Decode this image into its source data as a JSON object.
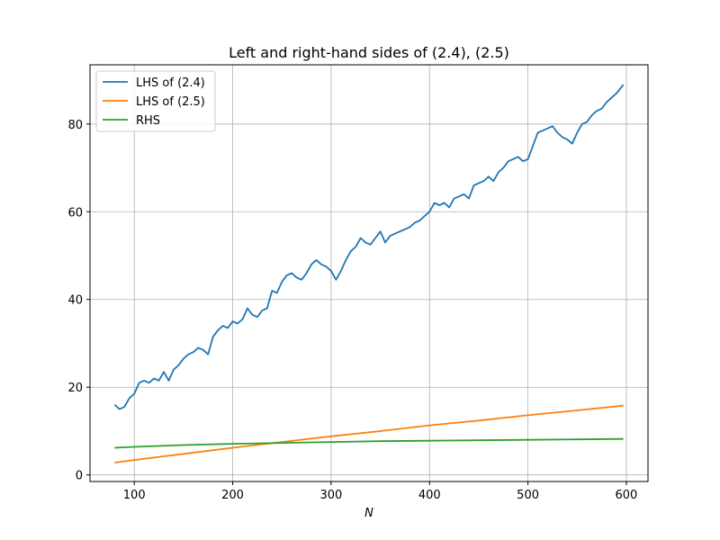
{
  "chart_data": {
    "type": "line",
    "title": "Left and right-hand sides of (2.4), (2.5)",
    "xlabel": "N",
    "ylabel": "",
    "xlim": [
      55,
      622
    ],
    "ylim": [
      -1.5,
      93.5
    ],
    "xticks": [
      100,
      200,
      300,
      400,
      500,
      600
    ],
    "yticks": [
      0,
      20,
      40,
      60,
      80
    ],
    "grid": true,
    "legend_position": "top-left",
    "series": [
      {
        "name": "LHS of (2.4)",
        "color": "#1f77b4",
        "points": [
          [
            80,
            16
          ],
          [
            85,
            15
          ],
          [
            90,
            15.5
          ],
          [
            95,
            17.5
          ],
          [
            100,
            18.5
          ],
          [
            105,
            21
          ],
          [
            110,
            21.5
          ],
          [
            115,
            21
          ],
          [
            120,
            22
          ],
          [
            125,
            21.5
          ],
          [
            130,
            23.5
          ],
          [
            135,
            21.5
          ],
          [
            140,
            24
          ],
          [
            145,
            25
          ],
          [
            150,
            26.5
          ],
          [
            155,
            27.5
          ],
          [
            160,
            28
          ],
          [
            165,
            29
          ],
          [
            170,
            28.5
          ],
          [
            175,
            27.5
          ],
          [
            180,
            31.5
          ],
          [
            185,
            33
          ],
          [
            190,
            34
          ],
          [
            195,
            33.5
          ],
          [
            200,
            35
          ],
          [
            205,
            34.5
          ],
          [
            210,
            35.5
          ],
          [
            215,
            38
          ],
          [
            220,
            36.5
          ],
          [
            225,
            36
          ],
          [
            230,
            37.5
          ],
          [
            235,
            38
          ],
          [
            240,
            42
          ],
          [
            245,
            41.5
          ],
          [
            250,
            44
          ],
          [
            255,
            45.5
          ],
          [
            260,
            46
          ],
          [
            265,
            45
          ],
          [
            270,
            44.5
          ],
          [
            275,
            46
          ],
          [
            280,
            48
          ],
          [
            285,
            49
          ],
          [
            290,
            48
          ],
          [
            295,
            47.5
          ],
          [
            300,
            46.5
          ],
          [
            305,
            44.5
          ],
          [
            310,
            46.5
          ],
          [
            315,
            49
          ],
          [
            320,
            51
          ],
          [
            325,
            52
          ],
          [
            330,
            54
          ],
          [
            335,
            53
          ],
          [
            340,
            52.5
          ],
          [
            345,
            54
          ],
          [
            350,
            55.5
          ],
          [
            355,
            53
          ],
          [
            360,
            54.5
          ],
          [
            365,
            55
          ],
          [
            370,
            55.5
          ],
          [
            375,
            56
          ],
          [
            380,
            56.5
          ],
          [
            385,
            57.5
          ],
          [
            390,
            58
          ],
          [
            395,
            59
          ],
          [
            400,
            60
          ],
          [
            405,
            62
          ],
          [
            410,
            61.5
          ],
          [
            415,
            62
          ],
          [
            420,
            61
          ],
          [
            425,
            63
          ],
          [
            430,
            63.5
          ],
          [
            435,
            64
          ],
          [
            440,
            63
          ],
          [
            445,
            66
          ],
          [
            450,
            66.5
          ],
          [
            455,
            67
          ],
          [
            460,
            68
          ],
          [
            465,
            67
          ],
          [
            470,
            69
          ],
          [
            475,
            70
          ],
          [
            480,
            71.5
          ],
          [
            485,
            72
          ],
          [
            490,
            72.5
          ],
          [
            495,
            71.5
          ],
          [
            500,
            72
          ],
          [
            505,
            75
          ],
          [
            510,
            78
          ],
          [
            515,
            78.5
          ],
          [
            520,
            79
          ],
          [
            525,
            79.5
          ],
          [
            530,
            78
          ],
          [
            535,
            77
          ],
          [
            540,
            76.5
          ],
          [
            545,
            75.5
          ],
          [
            550,
            78
          ],
          [
            555,
            80
          ],
          [
            560,
            80.5
          ],
          [
            565,
            82
          ],
          [
            570,
            83
          ],
          [
            575,
            83.5
          ],
          [
            580,
            85
          ],
          [
            585,
            86
          ],
          [
            590,
            87
          ],
          [
            597,
            89
          ]
        ]
      },
      {
        "name": "LHS of (2.5)",
        "color": "#ff7f0e",
        "points": [
          [
            80,
            2.8
          ],
          [
            100,
            3.4
          ],
          [
            150,
            4.8
          ],
          [
            200,
            6.2
          ],
          [
            250,
            7.5
          ],
          [
            300,
            8.8
          ],
          [
            350,
            10.0
          ],
          [
            400,
            11.3
          ],
          [
            450,
            12.4
          ],
          [
            500,
            13.6
          ],
          [
            550,
            14.7
          ],
          [
            597,
            15.8
          ]
        ]
      },
      {
        "name": "RHS",
        "color": "#2ca02c",
        "points": [
          [
            80,
            6.2
          ],
          [
            100,
            6.4
          ],
          [
            150,
            6.8
          ],
          [
            200,
            7.1
          ],
          [
            250,
            7.3
          ],
          [
            300,
            7.5
          ],
          [
            350,
            7.7
          ],
          [
            400,
            7.8
          ],
          [
            450,
            7.9
          ],
          [
            500,
            8.0
          ],
          [
            550,
            8.1
          ],
          [
            597,
            8.2
          ]
        ]
      }
    ]
  }
}
